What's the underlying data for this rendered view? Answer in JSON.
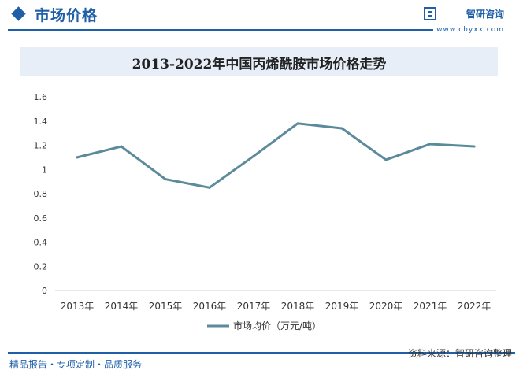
{
  "header": {
    "section_title": "市场价格",
    "brand_name": "智研咨询",
    "brand_url": "www.chyxx.com"
  },
  "footer": {
    "left_text": "精品报告・专项定制・品质服务",
    "source_text": "资料来源：智研咨询整理"
  },
  "colors": {
    "brand_blue": "#1f5fa8",
    "series_line": "#5b8a9b",
    "title_band": "#e7eef8"
  },
  "chart_data": {
    "type": "line",
    "title": "2013-2022年中国丙烯酰胺市场价格走势",
    "categories": [
      "2013年",
      "2014年",
      "2015年",
      "2016年",
      "2017年",
      "2018年",
      "2019年",
      "2020年",
      "2021年",
      "2022年"
    ],
    "series": [
      {
        "name": "市场均价（万元/吨）",
        "values": [
          1.1,
          1.19,
          0.92,
          0.85,
          1.11,
          1.38,
          1.34,
          1.08,
          1.21,
          1.19
        ]
      }
    ],
    "yticks": [
      "0",
      "0.2",
      "0.4",
      "0.6",
      "0.8",
      "1",
      "1.2",
      "1.4",
      "1.6"
    ],
    "ylim": [
      0,
      1.6
    ],
    "grid": false,
    "legend": "bottom"
  }
}
